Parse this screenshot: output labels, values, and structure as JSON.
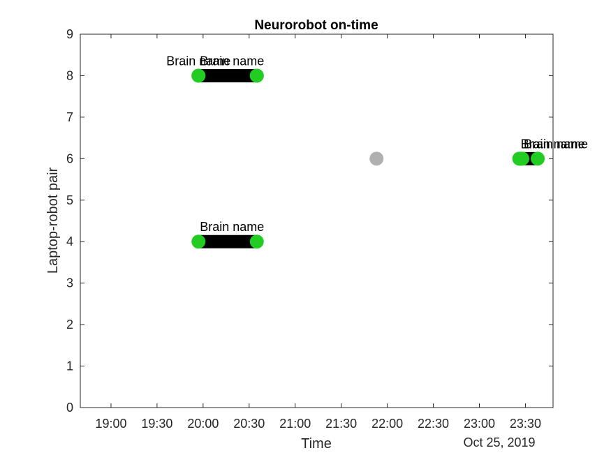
{
  "chart_data": {
    "type": "scatter",
    "title": "Neurorobot on-time",
    "xlabel": "Time",
    "ylabel": "Laptop-robot pair",
    "date_label": "Oct 25, 2019",
    "xlim": [
      "18:40",
      "23:48"
    ],
    "ylim": [
      0,
      9
    ],
    "x_ticks": [
      "19:00",
      "19:30",
      "20:00",
      "20:30",
      "21:00",
      "21:30",
      "22:00",
      "22:30",
      "23:00",
      "23:30"
    ],
    "y_ticks": [
      0,
      1,
      2,
      3,
      4,
      5,
      6,
      7,
      8,
      9
    ],
    "grid": false,
    "colors": {
      "on": "#22cc22",
      "idle": "#b0b0b0",
      "segment": "#000000",
      "axis": "#262626"
    },
    "sessions": [
      {
        "pair": 8,
        "start": "19:57",
        "end": "20:35",
        "label": "Brain name"
      },
      {
        "pair": 8,
        "start": "19:57",
        "end": "20:35",
        "label": "Brain name"
      },
      {
        "pair": 4,
        "start": "19:57",
        "end": "20:35",
        "label": "Brain name"
      },
      {
        "pair": 6,
        "start": "23:26",
        "end": "23:27",
        "label": "Brain name"
      },
      {
        "pair": 6,
        "start": "23:28",
        "end": "23:38",
        "label": "Brain name"
      }
    ],
    "idle_points": [
      {
        "pair": 6,
        "time": "21:53"
      }
    ]
  }
}
